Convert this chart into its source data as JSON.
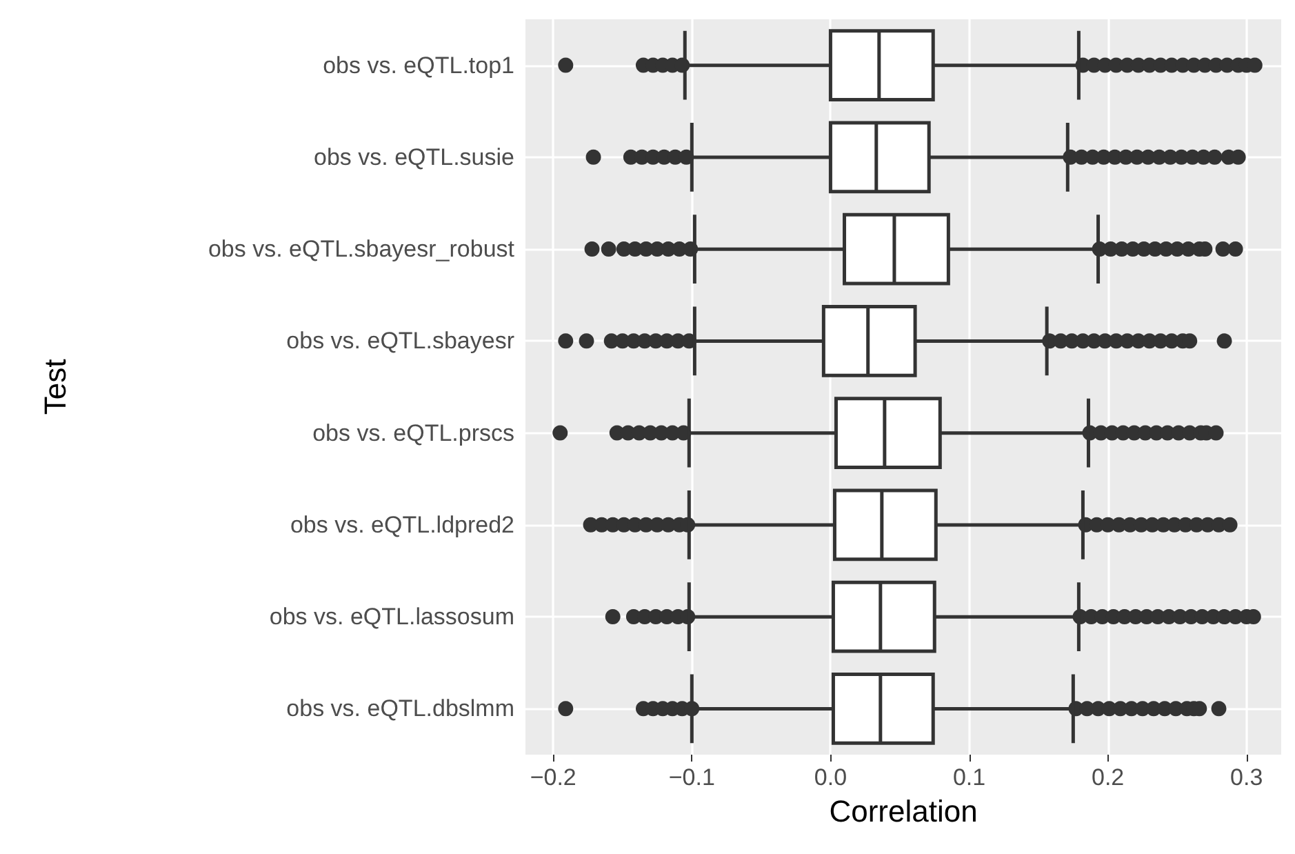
{
  "chart_data": {
    "type": "box",
    "orientation": "horizontal",
    "xlabel": "Correlation",
    "ylabel": "Test",
    "color": "#ffffff",
    "grid": true,
    "categories": [
      "obs vs. eQTL.top1",
      "obs vs. eQTL.susie",
      "obs vs. eQTL.sbayesr_robust",
      "obs vs. eQTL.sbayesr",
      "obs vs. eQTL.prscs",
      "obs vs. eQTL.ldpred2",
      "obs vs. eQTL.lassosum",
      "obs vs. eQTL.dbslmm"
    ],
    "xlim": [
      -0.22,
      0.325
    ],
    "xticks": [
      {
        "value": -0.2,
        "label": "−0.2"
      },
      {
        "value": -0.1,
        "label": "−0.1"
      },
      {
        "value": 0,
        "label": "0.0"
      },
      {
        "value": 0.1,
        "label": "0.1"
      },
      {
        "value": 0.2,
        "label": "0.2"
      },
      {
        "value": 0.3,
        "label": "0.3"
      }
    ],
    "boxes": [
      {
        "low": -0.105,
        "q1": 0.0,
        "median": 0.035,
        "q3": 0.074,
        "high": 0.179,
        "outliers": [
          -0.191,
          -0.135,
          -0.128,
          -0.121,
          -0.114,
          -0.107,
          0.182,
          0.19,
          0.198,
          0.206,
          0.214,
          0.222,
          0.23,
          0.238,
          0.246,
          0.254,
          0.262,
          0.27,
          0.278,
          0.286,
          0.294,
          0.3,
          0.306
        ]
      },
      {
        "low": -0.1,
        "q1": 0.0,
        "median": 0.033,
        "q3": 0.071,
        "high": 0.171,
        "outliers": [
          -0.171,
          -0.144,
          -0.136,
          -0.128,
          -0.12,
          -0.112,
          -0.104,
          0.173,
          0.181,
          0.189,
          0.197,
          0.205,
          0.213,
          0.221,
          0.229,
          0.237,
          0.245,
          0.253,
          0.261,
          0.269,
          0.277,
          0.287,
          0.294
        ]
      },
      {
        "low": -0.098,
        "q1": 0.01,
        "median": 0.046,
        "q3": 0.085,
        "high": 0.193,
        "outliers": [
          -0.172,
          -0.16,
          -0.149,
          -0.141,
          -0.133,
          -0.125,
          -0.117,
          -0.109,
          -0.101,
          0.194,
          0.202,
          0.21,
          0.218,
          0.226,
          0.234,
          0.242,
          0.25,
          0.258,
          0.266,
          0.27,
          0.283,
          0.292
        ]
      },
      {
        "low": -0.098,
        "q1": -0.005,
        "median": 0.027,
        "q3": 0.061,
        "high": 0.156,
        "outliers": [
          -0.191,
          -0.176,
          -0.158,
          -0.15,
          -0.142,
          -0.134,
          -0.126,
          -0.118,
          -0.11,
          -0.102,
          0.158,
          0.166,
          0.174,
          0.182,
          0.19,
          0.198,
          0.206,
          0.214,
          0.222,
          0.23,
          0.238,
          0.246,
          0.254,
          0.259,
          0.284
        ]
      },
      {
        "low": -0.102,
        "q1": 0.004,
        "median": 0.039,
        "q3": 0.079,
        "high": 0.186,
        "outliers": [
          -0.195,
          -0.154,
          -0.146,
          -0.138,
          -0.13,
          -0.122,
          -0.114,
          -0.106,
          0.187,
          0.195,
          0.203,
          0.211,
          0.219,
          0.227,
          0.235,
          0.243,
          0.251,
          0.259,
          0.267,
          0.271,
          0.278
        ]
      },
      {
        "low": -0.102,
        "q1": 0.003,
        "median": 0.037,
        "q3": 0.076,
        "high": 0.182,
        "outliers": [
          -0.173,
          -0.165,
          -0.157,
          -0.149,
          -0.141,
          -0.133,
          -0.125,
          -0.117,
          -0.109,
          -0.103,
          0.184,
          0.192,
          0.2,
          0.208,
          0.216,
          0.224,
          0.232,
          0.24,
          0.248,
          0.256,
          0.264,
          0.272,
          0.28,
          0.288
        ]
      },
      {
        "low": -0.102,
        "q1": 0.002,
        "median": 0.036,
        "q3": 0.075,
        "high": 0.179,
        "outliers": [
          -0.157,
          -0.142,
          -0.134,
          -0.126,
          -0.118,
          -0.11,
          -0.103,
          0.18,
          0.188,
          0.196,
          0.204,
          0.212,
          0.22,
          0.228,
          0.236,
          0.244,
          0.252,
          0.26,
          0.268,
          0.276,
          0.284,
          0.292,
          0.3,
          0.305
        ]
      },
      {
        "low": -0.1,
        "q1": 0.002,
        "median": 0.036,
        "q3": 0.074,
        "high": 0.175,
        "outliers": [
          -0.191,
          -0.135,
          -0.128,
          -0.121,
          -0.114,
          -0.107,
          -0.1,
          0.177,
          0.185,
          0.193,
          0.201,
          0.209,
          0.217,
          0.225,
          0.233,
          0.241,
          0.249,
          0.257,
          0.262,
          0.266,
          0.28
        ]
      }
    ]
  }
}
